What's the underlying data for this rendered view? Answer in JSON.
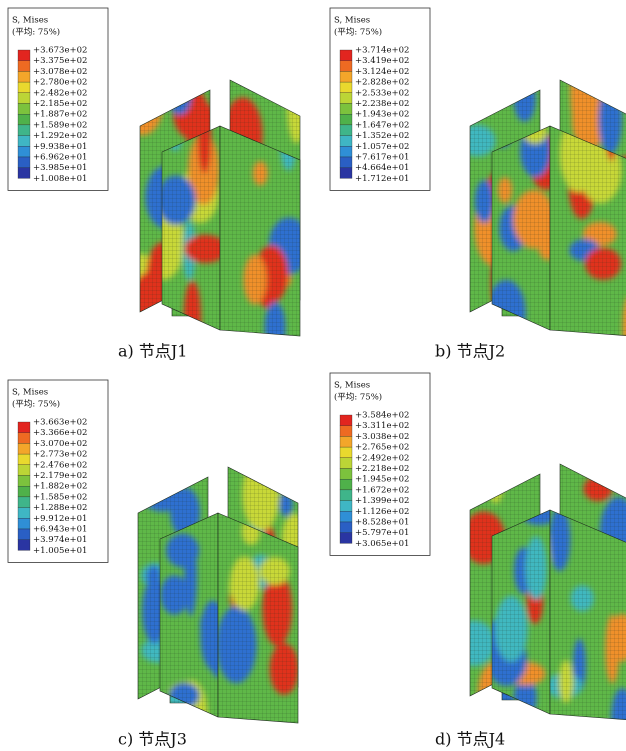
{
  "panels": [
    {
      "legend": {
        "title": "S, Mises",
        "subtitle": "(平均: 75%)",
        "labels": [
          "+3.673e+02",
          "+3.375e+02",
          "+3.078e+02",
          "+2.780e+02",
          "+2.482e+02",
          "+2.185e+02",
          "+1.887e+02",
          "+1.589e+02",
          "+1.292e+02",
          "+9.938e+01",
          "+6.962e+01",
          "+3.985e+01",
          "+1.008e+01"
        ]
      },
      "caption": "a)  节点J1"
    },
    {
      "legend": {
        "title": "S, Mises",
        "subtitle": "(平均: 75%)",
        "labels": [
          "+3.714e+02",
          "+3.419e+02",
          "+3.124e+02",
          "+2.828e+02",
          "+2.533e+02",
          "+2.238e+02",
          "+1.943e+02",
          "+1.647e+02",
          "+1.352e+02",
          "+1.057e+02",
          "+7.617e+01",
          "+4.664e+01",
          "+1.712e+01"
        ]
      },
      "caption": "b)  节点J2"
    },
    {
      "legend": {
        "title": "S, Mises",
        "subtitle": "(平均: 75%)",
        "labels": [
          "+3.663e+02",
          "+3.366e+02",
          "+3.070e+02",
          "+2.773e+02",
          "+2.476e+02",
          "+2.179e+02",
          "+1.882e+02",
          "+1.585e+02",
          "+1.288e+02",
          "+9.912e+01",
          "+6.943e+01",
          "+3.974e+01",
          "+1.005e+01"
        ]
      },
      "caption": "c)  节点J3"
    },
    {
      "legend": {
        "title": "S, Mises",
        "subtitle": "(平均: 75%)",
        "labels": [
          "+3.584e+02",
          "+3.311e+02",
          "+3.038e+02",
          "+2.765e+02",
          "+2.492e+02",
          "+2.218e+02",
          "+1.945e+02",
          "+1.672e+02",
          "+1.399e+02",
          "+1.126e+02",
          "+8.528e+01",
          "+5.797e+01",
          "+3.065e+01"
        ]
      },
      "caption": "d)  节点J4"
    }
  ]
}
